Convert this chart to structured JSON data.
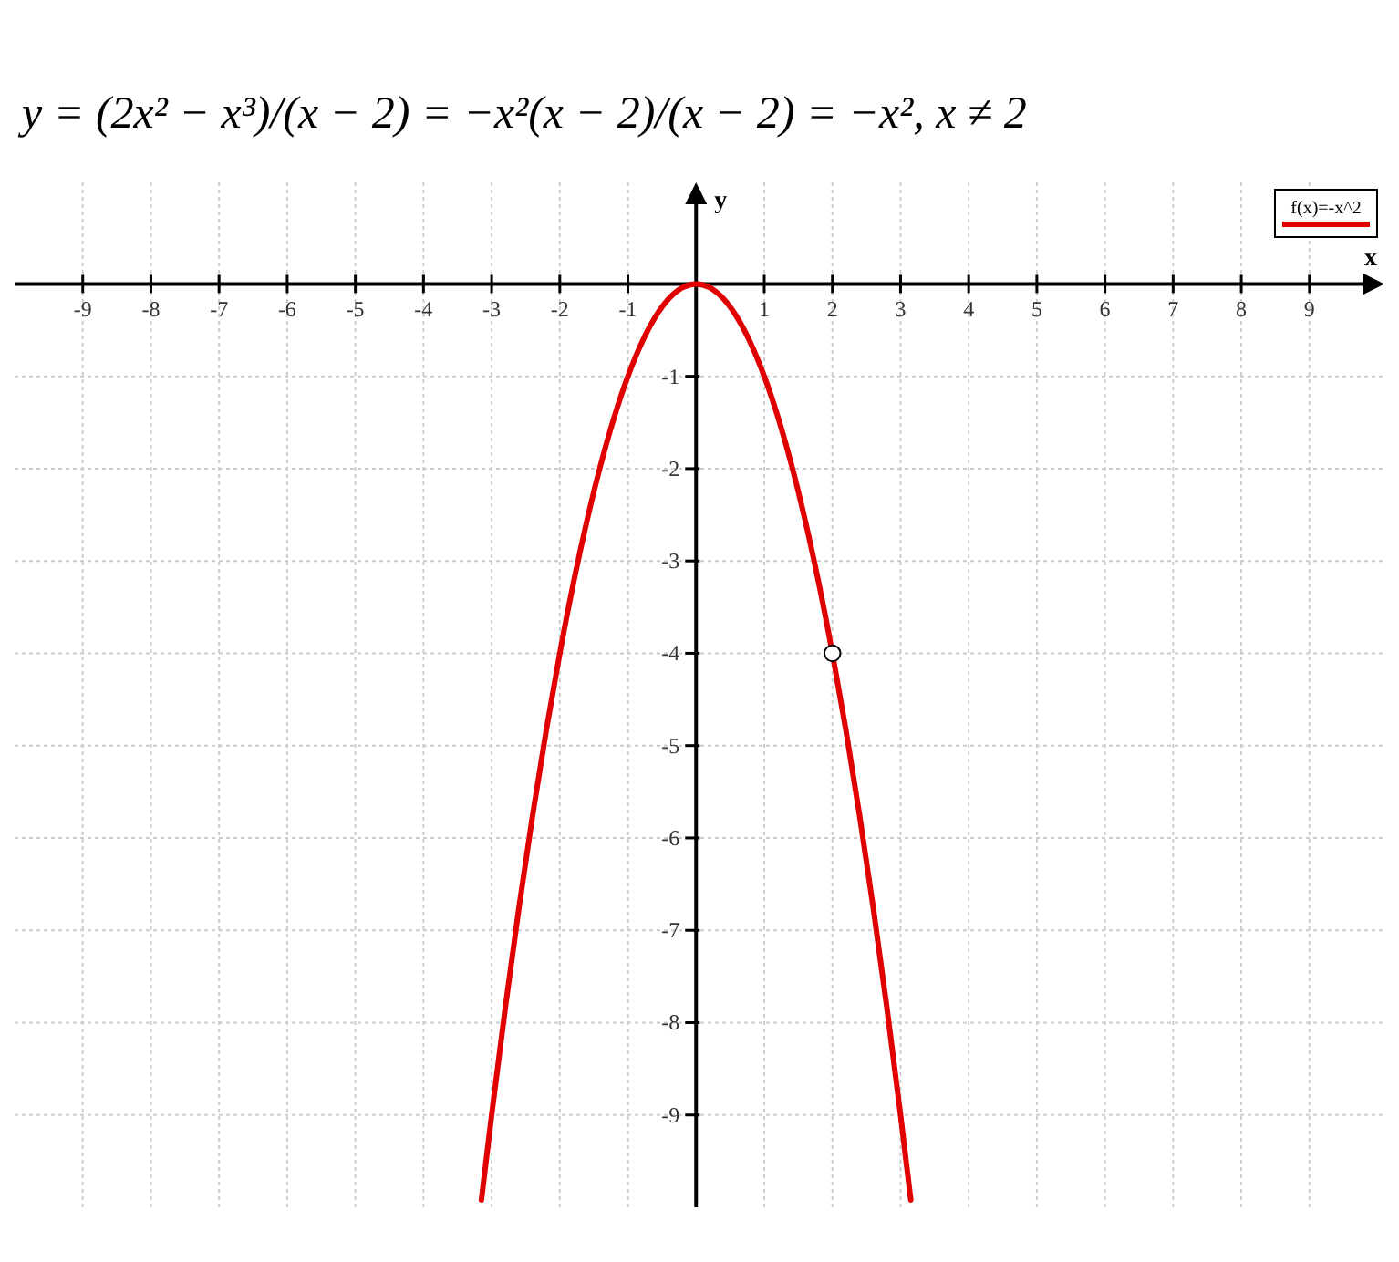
{
  "chart_data": {
    "type": "line",
    "title": "y = (2x² − x³)/(x − 2) = −x²(x − 2)/(x − 2) = −x², x ≠ 2",
    "xlabel": "x",
    "ylabel": "y",
    "xlim": [
      -10,
      10.1
    ],
    "ylim": [
      -10,
      1.1
    ],
    "xticks": [
      -9,
      -8,
      -7,
      -6,
      -5,
      -4,
      -3,
      -2,
      -1,
      1,
      2,
      3,
      4,
      5,
      6,
      7,
      8,
      9
    ],
    "yticks": [
      -9,
      -8,
      -7,
      -6,
      -5,
      -4,
      -3,
      -2,
      -1
    ],
    "grid": true,
    "legend": "top right",
    "line_style": "solid",
    "series": [
      {
        "name": "f(x)=-x^2",
        "color": "#e00000",
        "marker": "none",
        "x": [
          -3.15,
          -3,
          -2.8,
          -2.6,
          -2.4,
          -2.2,
          -2,
          -1.8,
          -1.6,
          -1.4,
          -1.2,
          -1,
          -0.8,
          -0.6,
          -0.4,
          -0.2,
          0,
          0.2,
          0.4,
          0.6,
          0.8,
          1,
          1.2,
          1.4,
          1.6,
          1.8,
          2,
          2.2,
          2.4,
          2.6,
          2.8,
          3,
          3.15
        ],
        "values": [
          -9.92,
          -9,
          -7.84,
          -6.76,
          -5.76,
          -4.84,
          -4,
          -3.24,
          -2.56,
          -1.96,
          -1.44,
          -1,
          -0.64,
          -0.36,
          -0.16,
          -0.04,
          0,
          -0.04,
          -0.16,
          -0.36,
          -0.64,
          -1,
          -1.44,
          -1.96,
          -2.56,
          -3.24,
          -4,
          -4.84,
          -5.76,
          -6.76,
          -7.84,
          -9,
          -9.92
        ]
      },
      {
        "type": "scatter",
        "color": "#ffffff",
        "marker": "circle",
        "x": [
          2
        ],
        "values": [
          -4
        ]
      }
    ]
  }
}
